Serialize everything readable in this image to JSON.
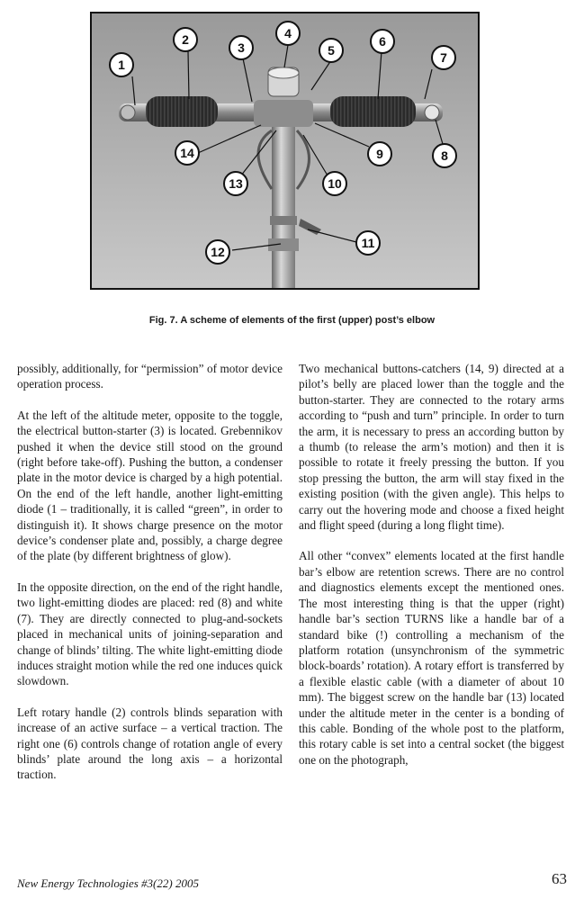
{
  "figure": {
    "callouts": [
      {
        "id": "callout-1",
        "label": "1"
      },
      {
        "id": "callout-2",
        "label": "2"
      },
      {
        "id": "callout-3",
        "label": "3"
      },
      {
        "id": "callout-4",
        "label": "4"
      },
      {
        "id": "callout-5",
        "label": "5"
      },
      {
        "id": "callout-6",
        "label": "6"
      },
      {
        "id": "callout-7",
        "label": "7"
      },
      {
        "id": "callout-8",
        "label": "8"
      },
      {
        "id": "callout-9",
        "label": "9"
      },
      {
        "id": "callout-10",
        "label": "10"
      },
      {
        "id": "callout-11",
        "label": "11"
      },
      {
        "id": "callout-12",
        "label": "12"
      },
      {
        "id": "callout-13",
        "label": "13"
      },
      {
        "id": "callout-14",
        "label": "14"
      }
    ],
    "caption": "Fig. 7. A scheme of elements of the first (upper) post’s elbow"
  },
  "left_column": [
    "possibly, additionally, for “permission” of motor device operation process.",
    "At the left of the altitude meter, opposite to the toggle, the electrical button-starter (3) is located. Grebennikov pushed it when the device still stood on the ground (right before take-off). Pushing the button, a condenser plate in the motor device is charged by a high potential. On the end of the left handle, another light-emitting diode (1 – traditionally, it is called “green”, in order to distinguish it). It shows charge presence on the motor device’s condenser plate and, possibly, a charge degree of the plate (by different brightness of glow).",
    "In the opposite direction, on the end of the right handle, two light-emitting diodes are placed: red (8) and white (7). They are directly connected to plug-and-sockets placed in mechanical units of joining-separation and change of blinds’ tilting. The white light-emitting diode induces straight motion while the red one induces quick slowdown.",
    "Left rotary handle (2) controls blinds separation with increase of an active surface – a vertical traction. The right one (6) controls change of rotation angle of every blinds’ plate around the long axis – a horizontal traction."
  ],
  "right_column": [
    "Two mechanical buttons-catchers (14, 9) directed at a pilot’s belly are placed lower than the toggle and the button-starter. They are connected to the rotary arms according to “push and turn” principle. In order to turn the arm, it is necessary to press an according button by a thumb (to release the arm’s motion) and then it is possible to rotate it freely pressing the button. If you stop pressing the button, the arm will stay fixed in the existing position (with the given angle). This helps to carry out the hovering mode and choose a fixed height and flight speed (during a long flight time).",
    "All other “convex” elements located at the first handle bar’s elbow are retention screws. There are no control and diagnostics elements except the mentioned ones. The most interesting thing is that the upper (right) handle bar’s section TURNS like a handle bar of a standard bike (!) controlling a mechanism of the platform rotation (unsynchronism of the symmetric block-boards’ rotation). A rotary effort is transferred by a flexible elastic cable (with a diameter of about 10 mm). The biggest screw on the handle bar (13) located under the altitude meter in the center is a bonding of this cable. Bonding of the whole post to the platform, this rotary cable is set into a central socket (the biggest one on the photograph,"
  ],
  "footer": {
    "journal": "New Energy Technologies #3(22) 2005",
    "page": "63"
  }
}
